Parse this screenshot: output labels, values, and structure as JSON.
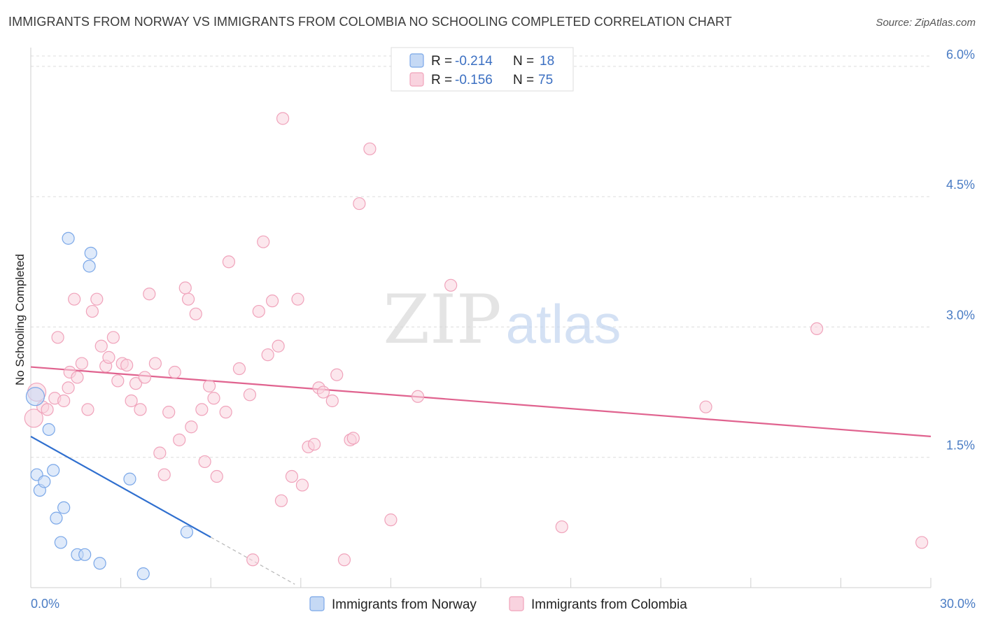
{
  "title": "IMMIGRANTS FROM NORWAY VS IMMIGRANTS FROM COLOMBIA NO SCHOOLING COMPLETED CORRELATION CHART",
  "source": "Source: ZipAtlas.com",
  "watermark": {
    "zip": "ZIP",
    "atlas": "atlas"
  },
  "chart_data": {
    "type": "scatter",
    "xlabel": "",
    "ylabel": "No Schooling Completed",
    "xlim": [
      0,
      30
    ],
    "ylim": [
      0,
      6.2
    ],
    "x_tick_labels": [
      "0.0%",
      "30.0%"
    ],
    "y_ticks": [
      {
        "value": 1.5,
        "label": "1.5%"
      },
      {
        "value": 3.0,
        "label": "3.0%"
      },
      {
        "value": 4.5,
        "label": "4.5%"
      },
      {
        "value": 6.0,
        "label": "6.0%"
      }
    ],
    "legend": [
      {
        "r_label": "R = ",
        "r_value": "-0.214",
        "n_label": "N = ",
        "n_value": "18"
      },
      {
        "r_label": "R = ",
        "r_value": "-0.156",
        "n_label": "N = ",
        "n_value": "75"
      }
    ],
    "series": [
      {
        "name": "Immigrants from Norway",
        "color": "#7aa7e8",
        "fill": "#c5d9f5",
        "line_color": "#2f6fcf",
        "trend": {
          "x0": 0,
          "y0": 1.74,
          "x1": 6.0,
          "y1": 0.58,
          "dash_to_x": 8.8
        },
        "points": [
          [
            0.15,
            2.2
          ],
          [
            0.2,
            1.3
          ],
          [
            0.3,
            1.12
          ],
          [
            0.45,
            1.22
          ],
          [
            0.6,
            1.82
          ],
          [
            0.75,
            1.35
          ],
          [
            0.85,
            0.8
          ],
          [
            1.0,
            0.52
          ],
          [
            1.1,
            0.92
          ],
          [
            1.25,
            4.02
          ],
          [
            1.55,
            0.38
          ],
          [
            1.8,
            0.38
          ],
          [
            1.95,
            3.7
          ],
          [
            2.0,
            3.85
          ],
          [
            2.3,
            0.28
          ],
          [
            3.3,
            1.25
          ],
          [
            3.75,
            0.16
          ],
          [
            5.2,
            0.64
          ]
        ]
      },
      {
        "name": "Immigrants from Colombia",
        "color": "#f0a3bb",
        "fill": "#f9d3df",
        "line_color": "#e0638f",
        "trend": {
          "x0": 0,
          "y0": 2.54,
          "x1": 30,
          "y1": 1.74
        },
        "points": [
          [
            0.1,
            1.95
          ],
          [
            0.2,
            2.25
          ],
          [
            0.4,
            2.08
          ],
          [
            0.55,
            2.05
          ],
          [
            0.8,
            2.18
          ],
          [
            0.9,
            2.88
          ],
          [
            1.1,
            2.15
          ],
          [
            1.25,
            2.3
          ],
          [
            1.3,
            2.48
          ],
          [
            1.45,
            3.32
          ],
          [
            1.55,
            2.42
          ],
          [
            1.7,
            2.58
          ],
          [
            1.9,
            2.05
          ],
          [
            2.05,
            3.18
          ],
          [
            2.2,
            3.32
          ],
          [
            2.35,
            2.78
          ],
          [
            2.5,
            2.55
          ],
          [
            2.6,
            2.65
          ],
          [
            2.75,
            2.88
          ],
          [
            2.9,
            2.38
          ],
          [
            3.05,
            2.58
          ],
          [
            3.2,
            2.56
          ],
          [
            3.35,
            2.15
          ],
          [
            3.5,
            2.35
          ],
          [
            3.65,
            2.05
          ],
          [
            3.8,
            2.42
          ],
          [
            3.95,
            3.38
          ],
          [
            4.15,
            2.58
          ],
          [
            4.3,
            1.55
          ],
          [
            4.45,
            1.3
          ],
          [
            4.6,
            2.02
          ],
          [
            4.8,
            2.48
          ],
          [
            4.95,
            1.7
          ],
          [
            5.15,
            3.45
          ],
          [
            5.25,
            3.32
          ],
          [
            5.35,
            1.85
          ],
          [
            5.5,
            3.15
          ],
          [
            5.7,
            2.05
          ],
          [
            5.8,
            1.45
          ],
          [
            5.95,
            2.32
          ],
          [
            6.1,
            2.18
          ],
          [
            6.2,
            1.28
          ],
          [
            6.5,
            2.02
          ],
          [
            6.6,
            3.75
          ],
          [
            6.95,
            2.52
          ],
          [
            7.3,
            2.22
          ],
          [
            7.4,
            0.32
          ],
          [
            7.6,
            3.18
          ],
          [
            7.75,
            3.98
          ],
          [
            7.9,
            2.68
          ],
          [
            8.05,
            3.3
          ],
          [
            8.25,
            2.78
          ],
          [
            8.35,
            1.0
          ],
          [
            8.4,
            5.4
          ],
          [
            8.7,
            1.28
          ],
          [
            8.9,
            3.32
          ],
          [
            9.05,
            1.18
          ],
          [
            9.25,
            1.62
          ],
          [
            9.45,
            1.65
          ],
          [
            9.6,
            2.3
          ],
          [
            9.75,
            2.25
          ],
          [
            10.05,
            2.15
          ],
          [
            10.2,
            2.45
          ],
          [
            10.45,
            0.32
          ],
          [
            10.65,
            1.7
          ],
          [
            10.75,
            1.72
          ],
          [
            10.95,
            4.42
          ],
          [
            11.3,
            5.05
          ],
          [
            12.0,
            0.78
          ],
          [
            12.9,
            2.2
          ],
          [
            14.0,
            3.48
          ],
          [
            17.7,
            0.7
          ],
          [
            22.5,
            2.08
          ],
          [
            26.2,
            2.98
          ],
          [
            29.7,
            0.52
          ]
        ]
      }
    ]
  }
}
